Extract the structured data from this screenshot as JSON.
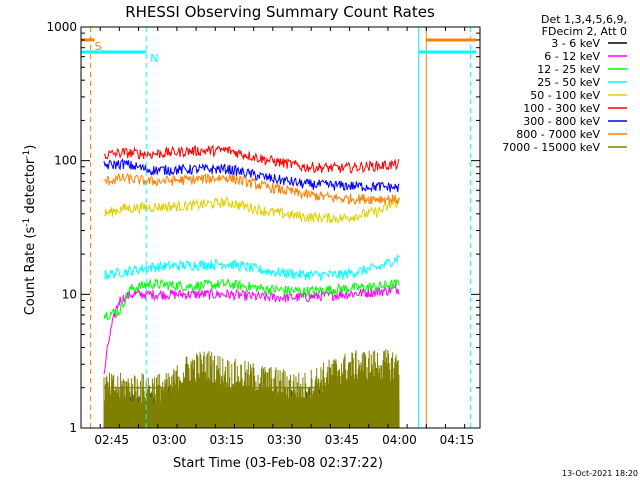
{
  "chart_data": {
    "type": "line",
    "title": "RHESSI Observing Summary Count Rates",
    "xlabel": "Start Time (03-Feb-08 02:37:22)",
    "ylabel_parts": [
      "Count Rate (s",
      "-1",
      " detector",
      "-1",
      ")"
    ],
    "y_scale": "log",
    "ylim": [
      1,
      1000
    ],
    "y_ticks": [
      1,
      10,
      100,
      1000
    ],
    "y_tick_labels": [
      "1",
      "10",
      "100",
      "1000"
    ],
    "xlim_minutes_after_0230": [
      7,
      111
    ],
    "x_ticks": [
      {
        "label": "02:45",
        "t": 15
      },
      {
        "label": "03:00",
        "t": 30
      },
      {
        "label": "03:15",
        "t": 45
      },
      {
        "label": "03:30",
        "t": 60
      },
      {
        "label": "03:45",
        "t": 75
      },
      {
        "label": "04:00",
        "t": 90
      },
      {
        "label": "04:15",
        "t": 105
      }
    ],
    "legend_header": [
      "Det 1,3,4,5,6,9,",
      "FDecim 2, Att 0"
    ],
    "legend_position": "right",
    "series": [
      {
        "name": "3 - 6 keV",
        "color": "#000000",
        "band": "low",
        "baseline": 1.3,
        "x": [
          13,
          32,
          43,
          50,
          55,
          70,
          80,
          90
        ],
        "y": [
          1.4,
          1.6,
          1.7,
          1.6,
          1.5,
          1.6,
          1.7,
          1.6
        ]
      },
      {
        "name": "6 - 12 keV",
        "color": "#ff00ff",
        "x": [
          13,
          17,
          20,
          25,
          35,
          45,
          55,
          65,
          75,
          85,
          90
        ],
        "y": [
          2.4,
          9,
          10,
          10,
          10,
          10,
          9.5,
          9.5,
          10,
          10.5,
          11
        ]
      },
      {
        "name": "12 - 25 keV",
        "color": "#00ff00",
        "x": [
          13,
          17,
          20,
          25,
          35,
          45,
          55,
          65,
          75,
          85,
          90
        ],
        "y": [
          7,
          7.5,
          11,
          12,
          11.5,
          12,
          11,
          10.5,
          11,
          11.5,
          12
        ]
      },
      {
        "name": "25 - 50 keV",
        "color": "#00ffff",
        "x": [
          13,
          20,
          25,
          35,
          45,
          55,
          65,
          75,
          85,
          90
        ],
        "y": [
          14,
          15,
          16,
          16.5,
          17,
          15,
          14,
          14,
          16,
          19
        ]
      },
      {
        "name": "50 - 100 keV",
        "color": "#e0d000",
        "x": [
          13,
          18,
          25,
          35,
          45,
          55,
          65,
          75,
          85,
          90
        ],
        "y": [
          40,
          44,
          45,
          46,
          49,
          42,
          38,
          37,
          42,
          50
        ]
      },
      {
        "name": "100 - 300 keV",
        "color": "#ff0000",
        "x": [
          13,
          18,
          25,
          35,
          45,
          55,
          65,
          75,
          85,
          90
        ],
        "y": [
          110,
          115,
          112,
          118,
          120,
          102,
          90,
          88,
          92,
          94
        ]
      },
      {
        "name": "300 - 800 keV",
        "color": "#0000ff",
        "x": [
          13,
          18,
          25,
          35,
          45,
          55,
          65,
          75,
          85,
          90
        ],
        "y": [
          92,
          95,
          85,
          86,
          87,
          75,
          67,
          65,
          64,
          63
        ]
      },
      {
        "name": "800 - 7000 keV",
        "color": "#ff8000",
        "x": [
          13,
          18,
          25,
          35,
          45,
          55,
          65,
          75,
          85,
          90
        ],
        "y": [
          70,
          74,
          70,
          72,
          75,
          64,
          56,
          52,
          52,
          51
        ]
      },
      {
        "name": "7000 - 15000 keV",
        "color": "#808000",
        "band": "low",
        "baseline": 2.0,
        "x": [
          13,
          30,
          35,
          40,
          45,
          65,
          75,
          80,
          90
        ],
        "y": [
          2.0,
          2.0,
          2.8,
          3.0,
          2.6,
          2.0,
          2.8,
          3.0,
          3.0
        ]
      }
    ],
    "flags": [
      {
        "label": "S",
        "color": "#ff8000",
        "t_vline": 9.5,
        "segments": [
          [
            7,
            10.5
          ],
          [
            97,
            110
          ]
        ],
        "level": 800
      },
      {
        "label": "N",
        "color": "#00ffff",
        "t_vline": 24,
        "segments": [
          [
            7,
            24
          ],
          [
            95,
            110
          ]
        ],
        "level": 650
      }
    ],
    "vlines": [
      {
        "t": 9.5,
        "color": "#ff8000",
        "style": "dashed"
      },
      {
        "t": 24,
        "color": "#00ffff",
        "style": "dashed"
      },
      {
        "t": 95,
        "color": "#00ffff",
        "style": "solid"
      },
      {
        "t": 97,
        "color": "#ff8000",
        "style": "solid"
      },
      {
        "t": 108.5,
        "color": "#00ffff",
        "style": "dashed"
      }
    ]
  },
  "footer": {
    "timestamp": "13-Oct-2021 18:20"
  }
}
